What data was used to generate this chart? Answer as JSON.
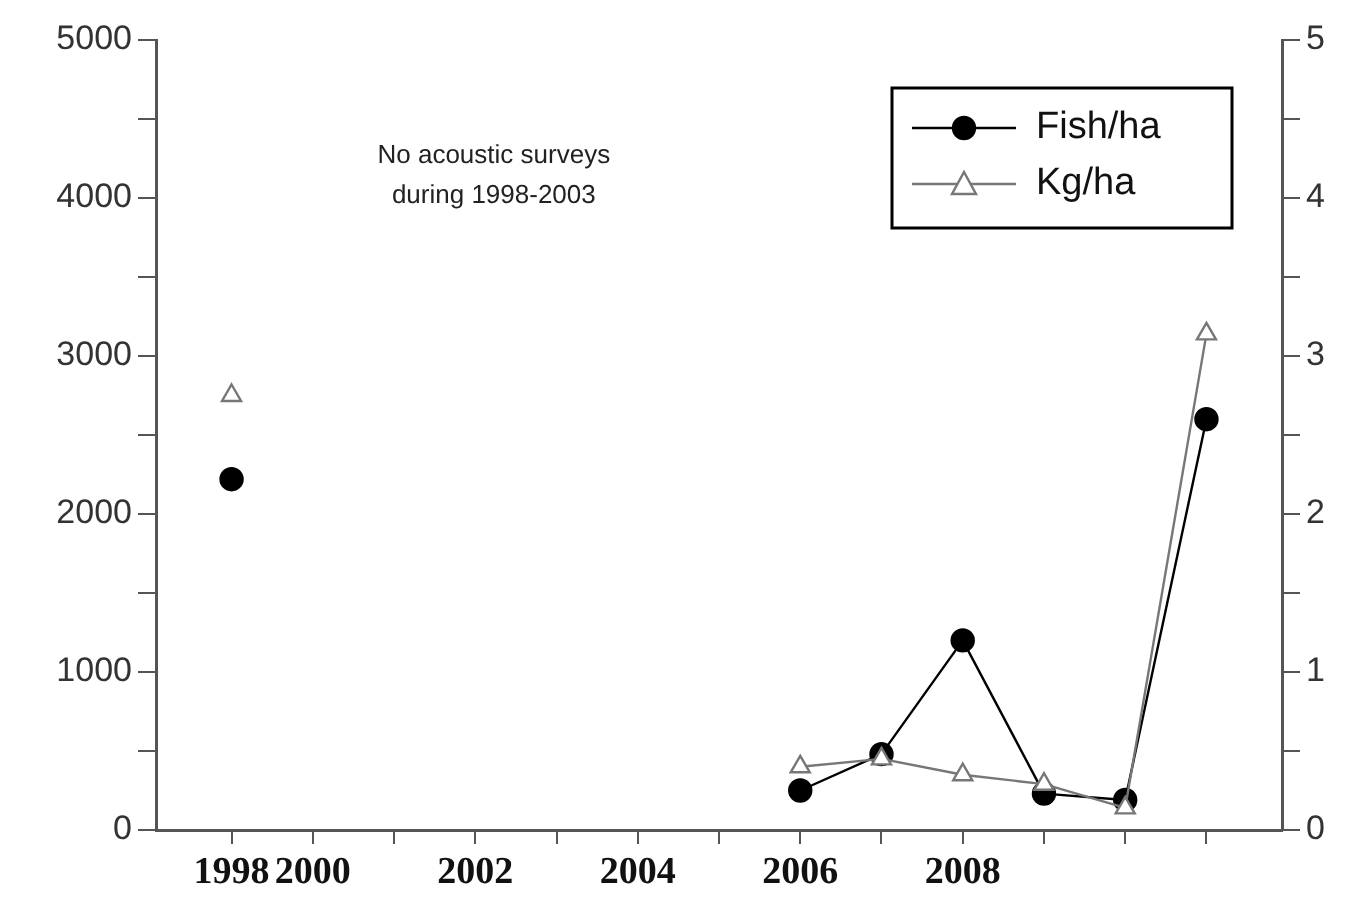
{
  "chart_data": {
    "type": "line",
    "categories": [
      "1998",
      "2000",
      null,
      "2002",
      null,
      "2004",
      null,
      "2006",
      null,
      "2008",
      null,
      null,
      null
    ],
    "series": [
      {
        "name": "Fish/ha",
        "color": "#000000",
        "marker": "circle",
        "values": [
          2220,
          null,
          null,
          null,
          null,
          null,
          null,
          250,
          480,
          1200,
          230,
          190,
          2600
        ]
      },
      {
        "name": "Kg/ha",
        "color": "#777777",
        "marker": "triangle",
        "axis": "y2",
        "values": [
          2.75,
          null,
          null,
          null,
          null,
          null,
          null,
          0.4,
          0.45,
          0.35,
          0.29,
          0.14,
          3.14
        ]
      }
    ],
    "ylim": [
      0,
      5000
    ],
    "yticks": [
      0,
      {
        "value": 500,
        "label": null
      },
      1000,
      {
        "value": 1500,
        "label": null
      },
      2000,
      {
        "value": 2500,
        "label": null
      },
      3000,
      {
        "value": 3500,
        "label": null
      },
      4000,
      {
        "value": 4500,
        "label": null
      },
      5000
    ],
    "y2lim": [
      0,
      5
    ],
    "y2ticks": [
      0,
      {
        "value": 0.5,
        "label": null
      },
      1,
      {
        "value": 1.5,
        "label": null
      },
      2,
      {
        "value": 2.5,
        "label": null
      },
      3,
      {
        "value": 3.5,
        "label": null
      },
      4,
      {
        "value": 4.5,
        "label": null
      },
      5
    ],
    "annotations": [
      "No acoustic surveys\nduring 1998-2003"
    ],
    "legend": "top right",
    "grid": false,
    "line_style": "solid"
  }
}
